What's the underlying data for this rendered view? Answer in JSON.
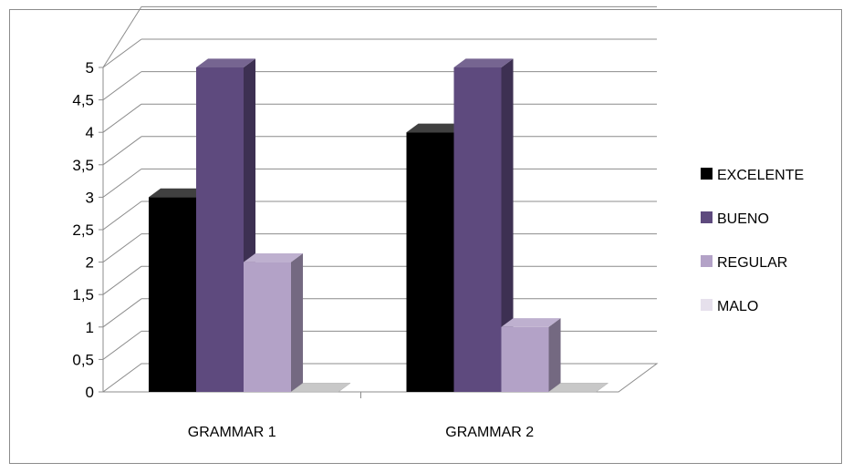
{
  "chart_data": {
    "type": "bar",
    "categories": [
      "GRAMMAR 1",
      "GRAMMAR 2"
    ],
    "series": [
      {
        "name": "EXCELENTE",
        "values": [
          3,
          4
        ],
        "color": "#000000"
      },
      {
        "name": "BUENO",
        "values": [
          5,
          5
        ],
        "color": "#5e4a7e"
      },
      {
        "name": "REGULAR",
        "values": [
          2,
          1
        ],
        "color": "#b3a2c7"
      },
      {
        "name": "MALO",
        "values": [
          0,
          0
        ],
        "color": "#e6e0ec"
      }
    ],
    "y_ticks": [
      "0",
      "0,5",
      "1",
      "1,5",
      "2",
      "2,5",
      "3",
      "3,5",
      "4",
      "4,5",
      "5"
    ],
    "ylim": [
      0,
      5
    ],
    "grid": true,
    "legend_position": "right",
    "style": "3d-clustered-column"
  }
}
